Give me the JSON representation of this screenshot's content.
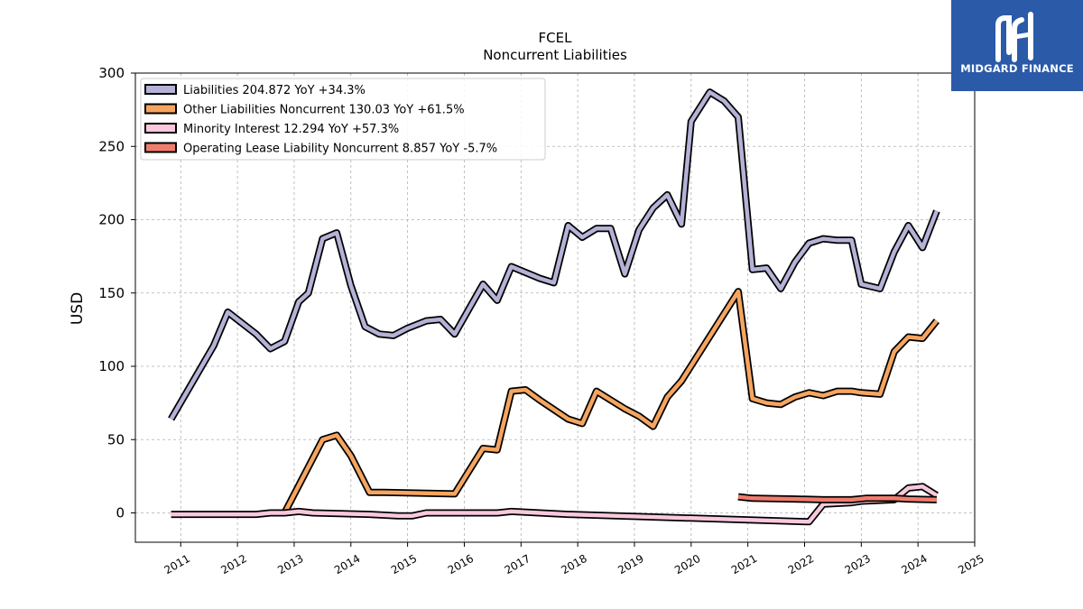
{
  "chart_data": {
    "type": "line",
    "title": "FCEL",
    "subtitle": "Noncurrent  Liabilities",
    "ylabel": "USD",
    "xlabel": "",
    "xlim": [
      2010.2,
      2025.0
    ],
    "ylim": [
      -20,
      300
    ],
    "yticks": [
      0,
      50,
      100,
      150,
      200,
      250,
      300
    ],
    "xticks": [
      2011,
      2012,
      2013,
      2014,
      2015,
      2016,
      2017,
      2018,
      2019,
      2020,
      2021,
      2022,
      2023,
      2024,
      2025
    ],
    "grid": true,
    "legend_position": "top-left",
    "series": [
      {
        "name": "Liabilities",
        "legend_label": "Liabilities  204.872 YoY +34.3%",
        "color": "#b4b2d6",
        "points": [
          [
            2010.83,
            64
          ],
          [
            2011.58,
            114
          ],
          [
            2011.83,
            137
          ],
          [
            2012.33,
            122
          ],
          [
            2012.58,
            112
          ],
          [
            2012.83,
            117
          ],
          [
            2013.08,
            144
          ],
          [
            2013.25,
            150
          ],
          [
            2013.5,
            187
          ],
          [
            2013.75,
            191
          ],
          [
            2014.0,
            155
          ],
          [
            2014.25,
            127
          ],
          [
            2014.5,
            122
          ],
          [
            2014.75,
            121
          ],
          [
            2015.0,
            126
          ],
          [
            2015.33,
            131
          ],
          [
            2015.58,
            132
          ],
          [
            2015.83,
            122
          ],
          [
            2016.08,
            139
          ],
          [
            2016.33,
            156
          ],
          [
            2016.58,
            145
          ],
          [
            2016.83,
            168
          ],
          [
            2017.08,
            164
          ],
          [
            2017.33,
            160
          ],
          [
            2017.58,
            157
          ],
          [
            2017.83,
            196
          ],
          [
            2018.08,
            188
          ],
          [
            2018.33,
            194
          ],
          [
            2018.58,
            194
          ],
          [
            2018.83,
            163
          ],
          [
            2019.08,
            193
          ],
          [
            2019.33,
            208
          ],
          [
            2019.58,
            217
          ],
          [
            2019.83,
            197
          ],
          [
            2020.0,
            267
          ],
          [
            2020.33,
            287
          ],
          [
            2020.58,
            281
          ],
          [
            2020.83,
            270
          ],
          [
            2021.08,
            166
          ],
          [
            2021.33,
            167
          ],
          [
            2021.58,
            153
          ],
          [
            2021.83,
            171
          ],
          [
            2022.08,
            184
          ],
          [
            2022.33,
            187
          ],
          [
            2022.58,
            186
          ],
          [
            2022.83,
            186
          ],
          [
            2023.0,
            156
          ],
          [
            2023.33,
            153
          ],
          [
            2023.58,
            178
          ],
          [
            2023.83,
            196
          ],
          [
            2024.08,
            181
          ],
          [
            2024.33,
            206
          ]
        ]
      },
      {
        "name": "Other Liabilities Noncurrent",
        "legend_label": "Other Liabilities Noncurrent  130.03 YoY +61.5%",
        "color": "#f5a560",
        "points": [
          [
            2012.83,
            0
          ],
          [
            2013.5,
            50
          ],
          [
            2013.75,
            53
          ],
          [
            2014.0,
            39
          ],
          [
            2014.33,
            14
          ],
          [
            2014.58,
            14
          ],
          [
            2015.83,
            13
          ],
          [
            2016.33,
            44
          ],
          [
            2016.58,
            43
          ],
          [
            2016.83,
            83
          ],
          [
            2017.08,
            84
          ],
          [
            2017.33,
            77
          ],
          [
            2017.83,
            64
          ],
          [
            2018.08,
            61
          ],
          [
            2018.33,
            83
          ],
          [
            2018.58,
            77
          ],
          [
            2018.83,
            71
          ],
          [
            2019.08,
            66
          ],
          [
            2019.33,
            59
          ],
          [
            2019.58,
            79
          ],
          [
            2019.83,
            90
          ],
          [
            2020.83,
            151
          ],
          [
            2021.08,
            78
          ],
          [
            2021.33,
            75
          ],
          [
            2021.58,
            74
          ],
          [
            2021.83,
            79
          ],
          [
            2022.08,
            82
          ],
          [
            2022.33,
            80
          ],
          [
            2022.58,
            83
          ],
          [
            2022.83,
            83
          ],
          [
            2023.0,
            82
          ],
          [
            2023.33,
            81
          ],
          [
            2023.58,
            110
          ],
          [
            2023.83,
            120
          ],
          [
            2024.08,
            119
          ],
          [
            2024.33,
            131
          ]
        ]
      },
      {
        "name": "Minority Interest",
        "legend_label": "Minority Interest  12.294 YoY +57.3%",
        "color": "#f9c8dd",
        "points": [
          [
            2010.83,
            -1
          ],
          [
            2011.83,
            -1
          ],
          [
            2012.33,
            -1
          ],
          [
            2012.58,
            0
          ],
          [
            2012.83,
            0
          ],
          [
            2013.08,
            1
          ],
          [
            2013.33,
            0
          ],
          [
            2014.33,
            -1
          ],
          [
            2014.83,
            -2
          ],
          [
            2015.08,
            -2
          ],
          [
            2015.33,
            0
          ],
          [
            2016.58,
            0
          ],
          [
            2016.83,
            1
          ],
          [
            2017.33,
            0
          ],
          [
            2017.83,
            -1
          ],
          [
            2022.08,
            -6
          ],
          [
            2022.33,
            6
          ],
          [
            2022.83,
            7
          ],
          [
            2023.0,
            8
          ],
          [
            2023.58,
            9
          ],
          [
            2023.83,
            17
          ],
          [
            2024.08,
            18
          ],
          [
            2024.33,
            12
          ]
        ]
      },
      {
        "name": "Operating Lease Liability Noncurrent",
        "legend_label": "Operating Lease Liability Noncurrent  8.857 YoY -5.7%",
        "color": "#f07c6e",
        "points": [
          [
            2020.83,
            11
          ],
          [
            2021.08,
            10
          ],
          [
            2021.83,
            9.5
          ],
          [
            2022.33,
            9
          ],
          [
            2022.83,
            9
          ],
          [
            2023.08,
            10
          ],
          [
            2023.58,
            10
          ],
          [
            2023.83,
            9.5
          ],
          [
            2024.33,
            9
          ]
        ]
      }
    ]
  },
  "brand": {
    "name": "MIDGARD FINANCE",
    "logo_icon": "stylized-MF-monogram-icon",
    "background": "#2a5aa8"
  }
}
